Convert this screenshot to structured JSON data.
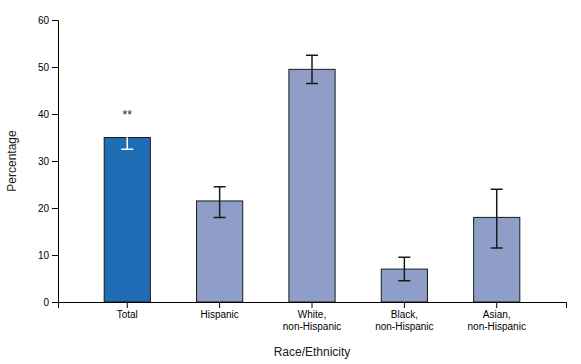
{
  "chart_data": {
    "type": "bar",
    "categories": [
      "Total",
      "Hispanic",
      "White,\nnon-Hispanic",
      "Black,\nnon-Hispanic",
      "Asian,\nnon-Hispanic"
    ],
    "values": [
      35.0,
      21.5,
      49.5,
      7.0,
      18.0
    ],
    "errors_upper": [
      3.0,
      3.0,
      3.0,
      2.5,
      6.0
    ],
    "errors_lower": [
      2.5,
      3.5,
      3.0,
      2.5,
      6.5
    ],
    "colors": [
      "#1f6eb5",
      "#8f9ec8",
      "#8f9ec8",
      "#8f9ec8",
      "#8f9ec8"
    ],
    "xlabel": "Race/Ethnicity",
    "ylabel": "Percentage",
    "ylim": [
      0,
      60
    ],
    "yticks": [
      0,
      10,
      20,
      30,
      40,
      50,
      60
    ],
    "annotations": [
      {
        "text": "**",
        "category": "Total"
      }
    ],
    "grid": false
  }
}
